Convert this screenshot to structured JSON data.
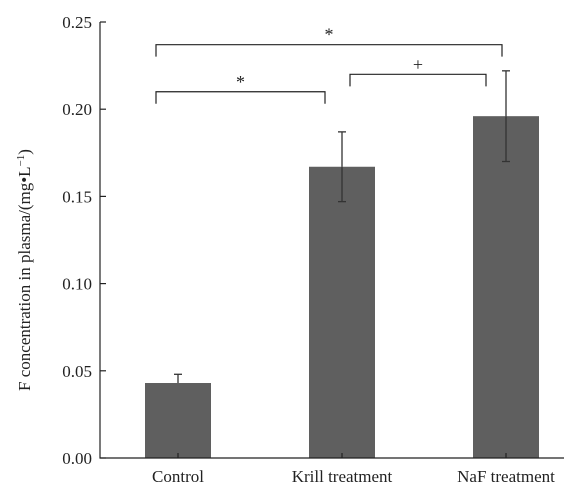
{
  "chart_data": {
    "type": "bar",
    "title": "",
    "xlabel": "",
    "ylabel": "F concentration in plasma/(mg",
    "ylabel_dot": "•",
    "ylabel_unit": "L",
    "ylabel_exp": "−1",
    "ylabel_close": ")",
    "categories": [
      "Control",
      "Krill treatment",
      "NaF treatment"
    ],
    "values": [
      0.043,
      0.167,
      0.196
    ],
    "errors": [
      0.005,
      0.02,
      0.026
    ],
    "ylim": [
      0,
      0.25
    ],
    "yticks": [
      "0.00",
      "0.05",
      "0.10",
      "0.15",
      "0.20",
      "0.25"
    ],
    "bar_color": "#5f5f5f",
    "significance": [
      {
        "from": 0,
        "to": 1,
        "label": "*",
        "y": 0.21
      },
      {
        "from": 1,
        "to": 2,
        "label": "+",
        "y": 0.22
      },
      {
        "from": 0,
        "to": 2,
        "label": "*",
        "y": 0.237
      }
    ]
  }
}
